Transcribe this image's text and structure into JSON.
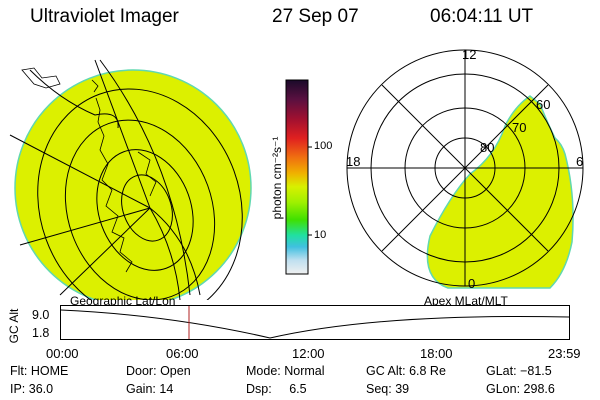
{
  "header": {
    "instrument": "Ultraviolet Imager",
    "date": "27 Sep 07",
    "time": "06:04:11 UT"
  },
  "colorbar": {
    "unit_label": "photon cm⁻²s⁻¹",
    "ticks": [
      "100",
      "10"
    ],
    "colors": [
      "#1a0a2a",
      "#5a1040",
      "#a01030",
      "#e02020",
      "#f07010",
      "#f0b000",
      "#d8f000",
      "#a0f000",
      "#40e000",
      "#20e0a0",
      "#40c0e0",
      "#c0e0f0",
      "#f0f0f0"
    ]
  },
  "panels": {
    "left_label": "Geographic Lat/Lon",
    "right_label": "Apex MLat/MLT"
  },
  "polar_plot": {
    "mlt_labels": [
      "12",
      "18",
      "6",
      "0"
    ],
    "mlat_labels": [
      "60",
      "70",
      "80"
    ]
  },
  "altitude_plot": {
    "ylabel": "GC Alt",
    "yticks": [
      "9.0",
      "1.8"
    ],
    "xticks": [
      "00:00",
      "06:00",
      "12:00",
      "18:00",
      "23:59"
    ],
    "current_marker": "06:04"
  },
  "status": {
    "flt_label": "Flt:",
    "flt_value": "HOME",
    "ip_label": "IP:",
    "ip_value": "36.0",
    "door_label": "Door:",
    "door_value": "Open",
    "gain_label": "Gain:",
    "gain_value": "14",
    "mode_label": "Mode:",
    "mode_value": "Normal",
    "dsp_label": "Dsp:",
    "dsp_value": "6.5",
    "gcalt_label": "GC Alt:",
    "gcalt_value": "6.8 Re",
    "seq_label": "Seq:",
    "seq_value": "39",
    "glat_label": "GLat:",
    "glat_value": "−81.5",
    "glon_label": "GLon:",
    "glon_value": "298.6"
  },
  "style": {
    "image_fill": "#dcf000",
    "image_edge": "#60d8b0",
    "marker_color": "#b02020"
  }
}
